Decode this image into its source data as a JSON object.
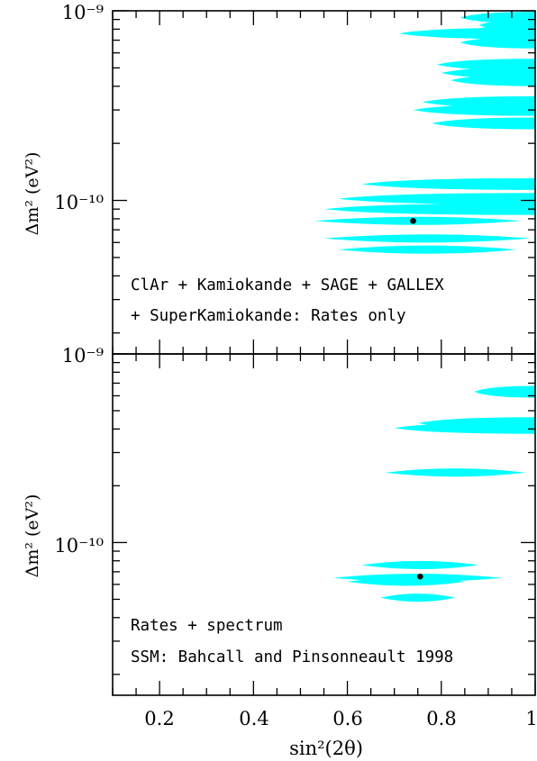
{
  "chart_data": [
    {
      "type": "scatter",
      "panel": "top",
      "ylabel": "Δm²  (eV²)",
      "yscale": "log",
      "ylim": [
        1.55e-11,
        1e-09
      ],
      "xlim": [
        0.1,
        1.0
      ],
      "ytick_labels": [
        "10⁻⁹",
        "10⁻¹⁰"
      ],
      "annotation_lines": [
        "ClAr + Kamiokande + SAGE + GALLEX",
        "+ SuperKamiokande: Rates only"
      ],
      "best_fit": {
        "x": 0.74,
        "y": 7.8e-11
      },
      "allowed_regions": [
        {
          "x_min": 0.84,
          "x_max": 1.0,
          "y": 9.2e-10
        },
        {
          "x_min": 0.88,
          "x_max": 1.0,
          "y": 8.4e-10
        },
        {
          "x_min": 0.85,
          "x_max": 1.0,
          "y": 7.8e-10
        },
        {
          "x_min": 0.84,
          "x_max": 1.0,
          "y": 6.8e-10
        },
        {
          "x_min": 0.79,
          "x_max": 1.0,
          "y": 5.2e-10
        },
        {
          "x_min": 0.8,
          "x_max": 1.0,
          "y": 4.7e-10
        },
        {
          "x_min": 0.82,
          "x_max": 1.0,
          "y": 4.3e-10
        },
        {
          "x_min": 0.76,
          "x_max": 1.0,
          "y": 3.3e-10
        },
        {
          "x_min": 0.74,
          "x_max": 1.0,
          "y": 3e-10
        },
        {
          "x_min": 0.78,
          "x_max": 1.0,
          "y": 2.55e-10
        },
        {
          "x_min": 0.71,
          "x_max": 1.0,
          "y": 7.6e-10
        },
        {
          "x_min": 0.63,
          "x_max": 1.0,
          "y": 1.22e-10
        },
        {
          "x_min": 0.58,
          "x_max": 1.0,
          "y": 1.02e-10
        },
        {
          "x_min": 0.55,
          "x_max": 1.0,
          "y": 9e-11
        },
        {
          "x_min": 0.53,
          "x_max": 0.97,
          "y": 7.8e-11
        },
        {
          "x_min": 0.55,
          "x_max": 0.99,
          "y": 6.3e-11
        },
        {
          "x_min": 0.58,
          "x_max": 0.96,
          "y": 5.5e-11
        }
      ]
    },
    {
      "type": "scatter",
      "panel": "bottom",
      "xlabel": "sin²(2θ)",
      "ylabel": "Δm²  (eV²)",
      "yscale": "log",
      "ylim": [
        1.55e-11,
        1e-09
      ],
      "xlim": [
        0.1,
        1.0
      ],
      "xtick_labels": [
        "0.2",
        "0.4",
        "0.6",
        "0.8",
        "1"
      ],
      "ytick_labels": [
        "10⁻⁹",
        "10⁻¹⁰"
      ],
      "annotation_lines": [
        "Rates + spectrum",
        "SSM: Bahcall and Pinsonneault 1998"
      ],
      "best_fit": {
        "x": 0.755,
        "y": 6.6e-11
      },
      "allowed_regions": [
        {
          "x_min": 0.87,
          "x_max": 1.0,
          "y": 6.3e-10
        },
        {
          "x_min": 0.75,
          "x_max": 1.0,
          "y": 4.3e-10
        },
        {
          "x_min": 0.7,
          "x_max": 1.0,
          "y": 4.05e-10
        },
        {
          "x_min": 0.68,
          "x_max": 0.98,
          "y": 2.35e-10
        },
        {
          "x_min": 0.63,
          "x_max": 0.88,
          "y": 7.6e-11
        },
        {
          "x_min": 0.57,
          "x_max": 0.93,
          "y": 6.5e-11
        },
        {
          "x_min": 0.6,
          "x_max": 0.85,
          "y": 6.2e-11
        },
        {
          "x_min": 0.67,
          "x_max": 0.83,
          "y": 5.1e-11
        }
      ]
    }
  ],
  "colors": {
    "region": "#00ffff",
    "axis": "#000000",
    "marker": "#000000"
  }
}
